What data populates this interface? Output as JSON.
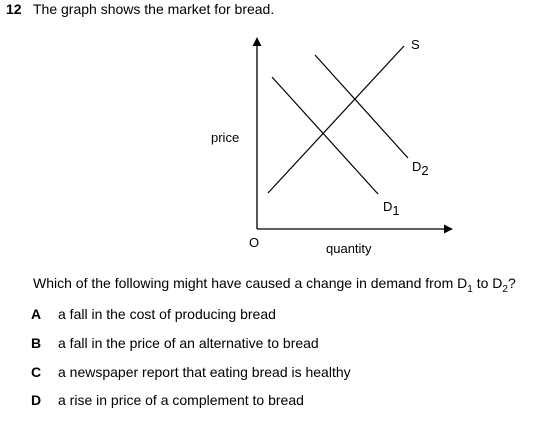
{
  "question": {
    "number": "12",
    "stem": "The graph shows the market for bread."
  },
  "graph": {
    "y_axis_label": "price",
    "x_axis_label": "quantity",
    "origin_label": "O",
    "supply_label": "S",
    "demand_1": {
      "main": "D",
      "sub": "1"
    },
    "demand_2": {
      "main": "D",
      "sub": "2"
    },
    "line_color": "#000000"
  },
  "prompt": {
    "before": "Which of the following might have caused a change in demand from D",
    "sub1": "1",
    "middle": " to D",
    "sub2": "2",
    "after": "?"
  },
  "options": [
    {
      "letter": "A",
      "text": "a fall in the cost of producing bread"
    },
    {
      "letter": "B",
      "text": "a fall in the price of an alternative to bread"
    },
    {
      "letter": "C",
      "text": "a newspaper report that eating bread is healthy"
    },
    {
      "letter": "D",
      "text": "a rise in price of a complement to bread"
    }
  ]
}
